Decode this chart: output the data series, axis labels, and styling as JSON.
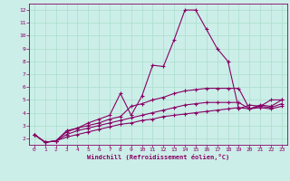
{
  "xlabel": "Windchill (Refroidissement éolien,°C)",
  "bg_color": "#cceee8",
  "line_color": "#880066",
  "grid_color": "#aaddcc",
  "xlim": [
    -0.5,
    23.5
  ],
  "ylim": [
    1.5,
    12.5
  ],
  "xticks": [
    0,
    1,
    2,
    3,
    4,
    5,
    6,
    7,
    8,
    9,
    10,
    11,
    12,
    13,
    14,
    15,
    16,
    17,
    18,
    19,
    20,
    21,
    22,
    23
  ],
  "yticks": [
    2,
    3,
    4,
    5,
    6,
    7,
    8,
    9,
    10,
    11,
    12
  ],
  "line1_x": [
    0,
    1,
    2,
    3,
    4,
    5,
    6,
    7,
    8,
    9,
    10,
    11,
    12,
    13,
    14,
    15,
    16,
    17,
    18,
    19,
    20,
    21,
    22,
    23
  ],
  "line1_y": [
    2.3,
    1.7,
    1.8,
    2.6,
    2.8,
    3.2,
    3.5,
    3.8,
    5.5,
    3.8,
    5.3,
    7.7,
    7.6,
    9.7,
    12.0,
    12.0,
    10.5,
    9.0,
    8.0,
    4.3,
    4.6,
    4.5,
    5.0,
    5.0
  ],
  "line2_x": [
    0,
    1,
    2,
    3,
    4,
    5,
    6,
    7,
    8,
    9,
    10,
    11,
    12,
    13,
    14,
    15,
    16,
    17,
    18,
    19,
    20,
    21,
    22,
    23
  ],
  "line2_y": [
    2.3,
    1.7,
    1.8,
    2.5,
    2.8,
    3.0,
    3.2,
    3.5,
    3.7,
    4.5,
    4.7,
    5.0,
    5.2,
    5.5,
    5.7,
    5.8,
    5.9,
    5.9,
    5.9,
    5.9,
    4.3,
    4.6,
    4.5,
    5.0
  ],
  "line3_x": [
    0,
    1,
    2,
    3,
    4,
    5,
    6,
    7,
    8,
    9,
    10,
    11,
    12,
    13,
    14,
    15,
    16,
    17,
    18,
    19,
    20,
    21,
    22,
    23
  ],
  "line3_y": [
    2.3,
    1.7,
    1.8,
    2.3,
    2.6,
    2.8,
    3.0,
    3.2,
    3.4,
    3.6,
    3.8,
    4.0,
    4.2,
    4.4,
    4.6,
    4.7,
    4.8,
    4.8,
    4.8,
    4.8,
    4.3,
    4.5,
    4.4,
    4.7
  ],
  "line4_x": [
    0,
    1,
    2,
    3,
    4,
    5,
    6,
    7,
    8,
    9,
    10,
    11,
    12,
    13,
    14,
    15,
    16,
    17,
    18,
    19,
    20,
    21,
    22,
    23
  ],
  "line4_y": [
    2.3,
    1.7,
    1.8,
    2.1,
    2.3,
    2.5,
    2.7,
    2.9,
    3.1,
    3.2,
    3.4,
    3.5,
    3.7,
    3.8,
    3.9,
    4.0,
    4.1,
    4.2,
    4.3,
    4.4,
    4.3,
    4.4,
    4.3,
    4.5
  ]
}
